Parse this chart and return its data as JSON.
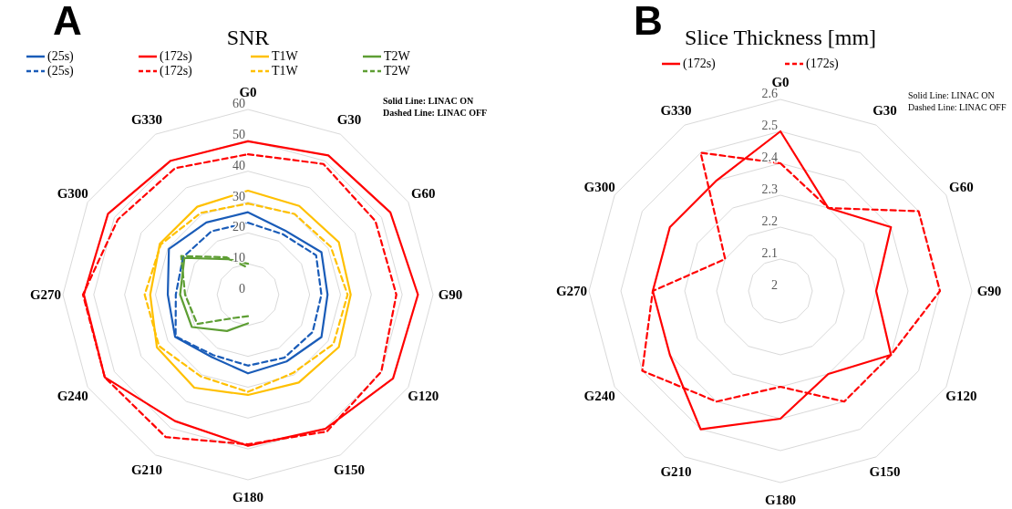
{
  "chart_data": [
    {
      "type": "radar",
      "title": "SNR",
      "legend": "top",
      "grid": true,
      "annotations": [
        "A",
        "Solid Line: LINAC ON",
        "Dashed Line: LINAC OFF"
      ],
      "categories": [
        "G0",
        "G30",
        "G60",
        "G90",
        "G120",
        "G150",
        "G180",
        "G210",
        "G240",
        "G270",
        "G300",
        "G330"
      ],
      "ylim": [
        0,
        60
      ],
      "yticks": [
        0,
        10,
        20,
        30,
        40,
        50,
        60
      ],
      "series": [
        {
          "name": "(25s)",
          "color": "#1a5cb8",
          "line_style": "solid",
          "values": [
            26.7,
            24,
            27.5,
            25.8,
            27.5,
            25,
            25.5,
            23.4,
            27.3,
            26,
            29.6,
            27
          ]
        },
        {
          "name": "(25s)",
          "color": "#1a5cb8",
          "line_style": "dashed",
          "values": [
            23.3,
            22.6,
            25.5,
            23.8,
            24.2,
            23.6,
            23,
            22.6,
            27.1,
            23.4,
            24.3,
            23.7
          ]
        },
        {
          "name": "(172s)",
          "color": "#ff0000",
          "line_style": "solid",
          "values": [
            49.7,
            52.1,
            53.3,
            55.1,
            54.3,
            50.2,
            49,
            47.3,
            53.6,
            53.2,
            52.4,
            50.1
          ]
        },
        {
          "name": "(172s)",
          "color": "#ff0000",
          "line_style": "dashed",
          "values": [
            45.5,
            48.9,
            47.7,
            48.1,
            49.9,
            51.2,
            48.5,
            53.3,
            53.6,
            53.5,
            48.7,
            47.3
          ]
        },
        {
          "name": "T1W",
          "color": "#ffc000",
          "line_style": "solid",
          "values": [
            33.7,
            33.2,
            34,
            33.3,
            34,
            32.9,
            32.5,
            34.8,
            34.1,
            31.7,
            33,
            32.9
          ]
        },
        {
          "name": "T1W",
          "color": "#ffc000",
          "line_style": "dashed",
          "values": [
            29.5,
            30.2,
            31,
            32.3,
            32,
            29.3,
            31.5,
            30.6,
            33.3,
            33.5,
            32.6,
            30.6
          ]
        },
        {
          "name": "T2W",
          "color": "#5e9e34",
          "line_style": "solid",
          "values": [
            10,
            null,
            null,
            null,
            null,
            null,
            9.3,
            13.6,
            21,
            22,
            23.8,
            13.3
          ]
        },
        {
          "name": "T2W",
          "color": "#5e9e34",
          "line_style": "dashed",
          "values": [
            8.7,
            null,
            null,
            null,
            null,
            null,
            7,
            8.7,
            19,
            20.4,
            25,
            14
          ]
        }
      ]
    },
    {
      "type": "radar",
      "title": "Slice Thickness [mm]",
      "legend": "top",
      "grid": true,
      "annotations": [
        "B",
        "Solid Line: LINAC ON",
        "Dashed Line: LINAC OFF"
      ],
      "categories": [
        "G0",
        "G30",
        "G60",
        "G90",
        "G120",
        "G150",
        "G180",
        "G210",
        "G240",
        "G270",
        "G300",
        "G330"
      ],
      "ylim": [
        2,
        2.6
      ],
      "yticks": [
        2,
        2.1,
        2.2,
        2.3,
        2.4,
        2.5,
        2.6
      ],
      "series": [
        {
          "name": "(172s)",
          "color": "#ff0000",
          "line_style": "solid",
          "values": [
            2.5,
            2.3,
            2.4,
            2.3,
            2.4,
            2.3,
            2.4,
            2.5,
            2.4,
            2.4,
            2.4,
            2.4
          ]
        },
        {
          "name": "(172s)",
          "color": "#ff0000",
          "line_style": "dashed",
          "values": [
            2.4,
            2.3,
            2.5,
            2.5,
            2.4,
            2.4,
            2.3,
            2.4,
            2.5,
            2.4,
            2.2,
            2.5
          ]
        }
      ]
    }
  ]
}
